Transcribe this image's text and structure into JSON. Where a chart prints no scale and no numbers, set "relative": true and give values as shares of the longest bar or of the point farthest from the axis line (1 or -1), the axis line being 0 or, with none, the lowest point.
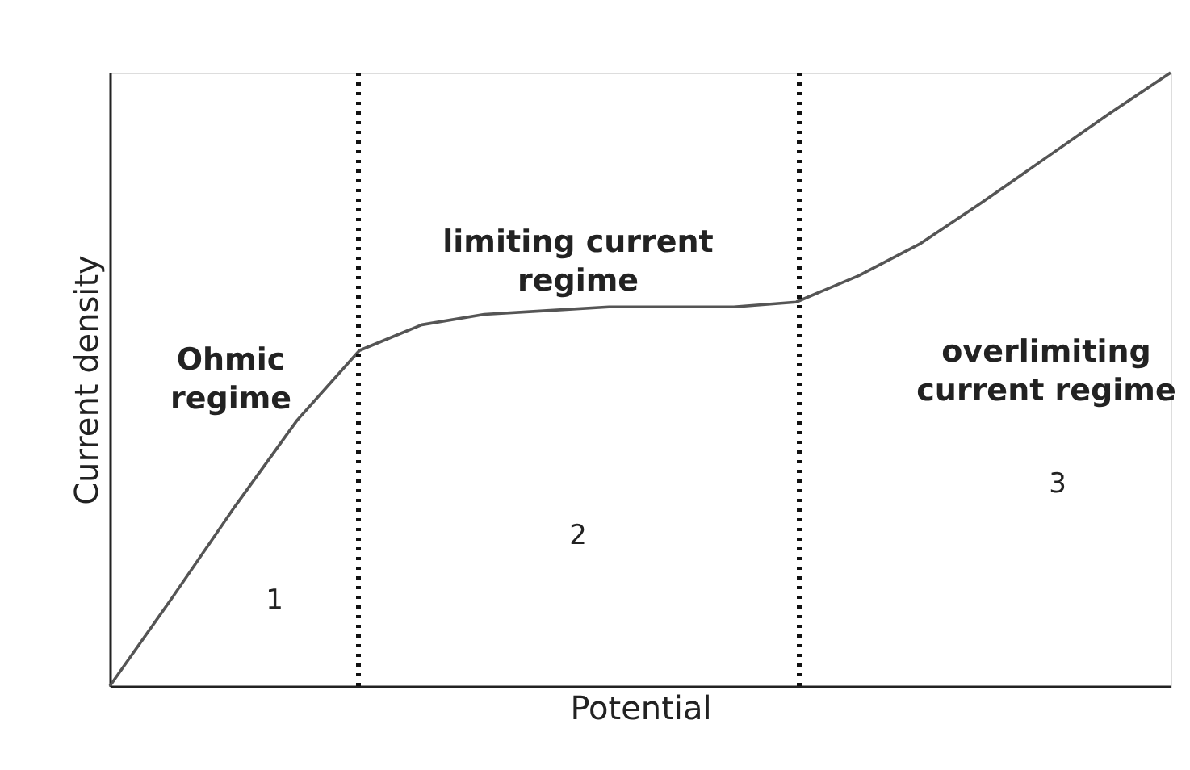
{
  "chart_data": {
    "type": "line",
    "relative": true,
    "xlabel": "Potential",
    "ylabel": "Current density",
    "categories": [
      null,
      null,
      null,
      null,
      null,
      null,
      null,
      null,
      null,
      null,
      null,
      null,
      null,
      null,
      null,
      null,
      null,
      null
    ],
    "series": [
      {
        "color": "#555555",
        "values": [
          0,
          0.144,
          0.292,
          0.433,
          0.547,
          0.589,
          0.606,
          0.612,
          0.618,
          0.618,
          0.618,
          0.626,
          0.669,
          0.722,
          0.79,
          0.861,
          0.932,
          1
        ]
      }
    ],
    "annotations": [
      "Ohmic\nregime",
      "limiting current\nregime",
      "overlimiting\ncurrent regime",
      "1",
      "2",
      "3"
    ],
    "grid": false,
    "marker": "none",
    "line_style": "solid"
  }
}
